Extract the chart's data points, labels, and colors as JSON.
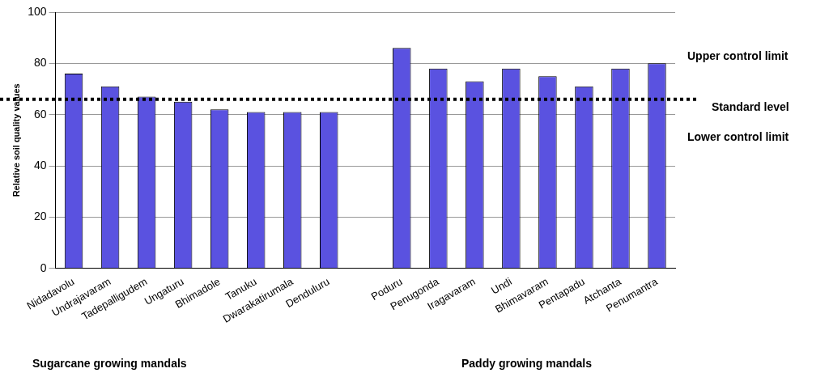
{
  "chart_data": {
    "type": "bar",
    "ylabel": "Relative soil quality values",
    "categories": [
      "Nidadavolu",
      "Undrajavaram",
      "Tadepalligudem",
      "Ungaturu",
      "Bhimadole",
      "Tanuku",
      "Dwarakatirumala",
      "Denduluru",
      null,
      "Poduru",
      "Penugonda",
      "Iragavaram",
      "Undi",
      "Bhimavaram",
      "Pentapadu",
      "Atchanta",
      "Penumantra"
    ],
    "values": [
      76,
      71,
      67,
      65,
      62,
      61,
      61,
      61,
      null,
      86,
      78,
      73,
      78,
      75,
      71,
      78,
      80
    ],
    "color": "#5a52e0",
    "ylim": [
      0,
      100
    ],
    "yticks": [
      0,
      20,
      40,
      60,
      80,
      100
    ],
    "grid": "y",
    "legend": false,
    "ref_lines": [
      {
        "axis": "y",
        "value": 66,
        "label": "Standard level",
        "line_style": "dotted",
        "color": "#000000"
      }
    ],
    "annotations": [
      "Upper control limit",
      "Lower control limit",
      "Sugarcane growing mandals",
      "Paddy growing mandals"
    ]
  }
}
